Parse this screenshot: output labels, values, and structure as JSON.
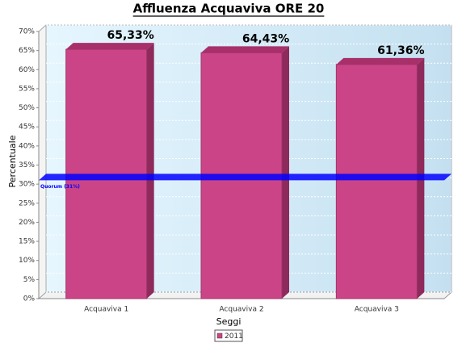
{
  "chart_data": {
    "type": "bar3d",
    "title": "Affluenza Acquaviva ORE 20",
    "x_label": "Seggi",
    "y_label": "Percentuale",
    "categories": [
      "Acquaviva 1",
      "Acquaviva 2",
      "Acquaviva 3"
    ],
    "series": [
      {
        "name": "2011",
        "color": "#cc4488",
        "values": [
          65.33,
          64.43,
          61.36
        ],
        "value_labels": [
          "65,33%",
          "64,43%",
          "61,36%"
        ]
      }
    ],
    "ylim": [
      0,
      70
    ],
    "yticks": [
      {
        "value": 0,
        "label": "0%"
      },
      {
        "value": 5,
        "label": "5%"
      },
      {
        "value": 10,
        "label": "10%"
      },
      {
        "value": 15,
        "label": "15%"
      },
      {
        "value": 20,
        "label": "20%"
      },
      {
        "value": 25,
        "label": "25%"
      },
      {
        "value": 30,
        "label": "30%"
      },
      {
        "value": 35,
        "label": "35%"
      },
      {
        "value": 40,
        "label": "40%"
      },
      {
        "value": 45,
        "label": "45%"
      },
      {
        "value": 50,
        "label": "50%"
      },
      {
        "value": 55,
        "label": "55%"
      },
      {
        "value": 60,
        "label": "60%"
      },
      {
        "value": 65,
        "label": "65%"
      },
      {
        "value": 70,
        "label": "70%"
      }
    ],
    "grid": true,
    "quorum": {
      "value": 31,
      "label": "Quorum (31%)",
      "color": "#0000ff"
    }
  }
}
